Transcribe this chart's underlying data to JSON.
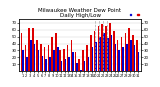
{
  "title": "Milwaukee Weather Dew Point\nDaily High/Low",
  "background_color": "#ffffff",
  "high_color": "#dd0000",
  "low_color": "#0000cc",
  "ylim": [
    0,
    75
  ],
  "yticks": [
    10,
    20,
    30,
    40,
    50,
    60,
    70
  ],
  "ytick_labels": [
    "10",
    "20",
    "30",
    "40",
    "50",
    "60",
    "70"
  ],
  "n_days": 31,
  "highs": [
    55,
    38,
    62,
    62,
    45,
    40,
    35,
    38,
    50,
    55,
    30,
    32,
    38,
    45,
    28,
    18,
    30,
    38,
    52,
    58,
    65,
    68,
    65,
    70,
    58,
    45,
    50,
    55,
    62,
    52,
    45
  ],
  "lows": [
    30,
    20,
    45,
    40,
    30,
    22,
    18,
    20,
    30,
    35,
    15,
    18,
    20,
    28,
    12,
    2,
    15,
    20,
    35,
    42,
    50,
    55,
    48,
    52,
    40,
    30,
    35,
    40,
    45,
    38,
    28
  ],
  "vline_days": [
    20,
    21,
    22,
    23
  ],
  "legend_blue_label": ".",
  "legend_red_label": ".",
  "title_fontsize": 4.0,
  "tick_fontsize": 2.8
}
